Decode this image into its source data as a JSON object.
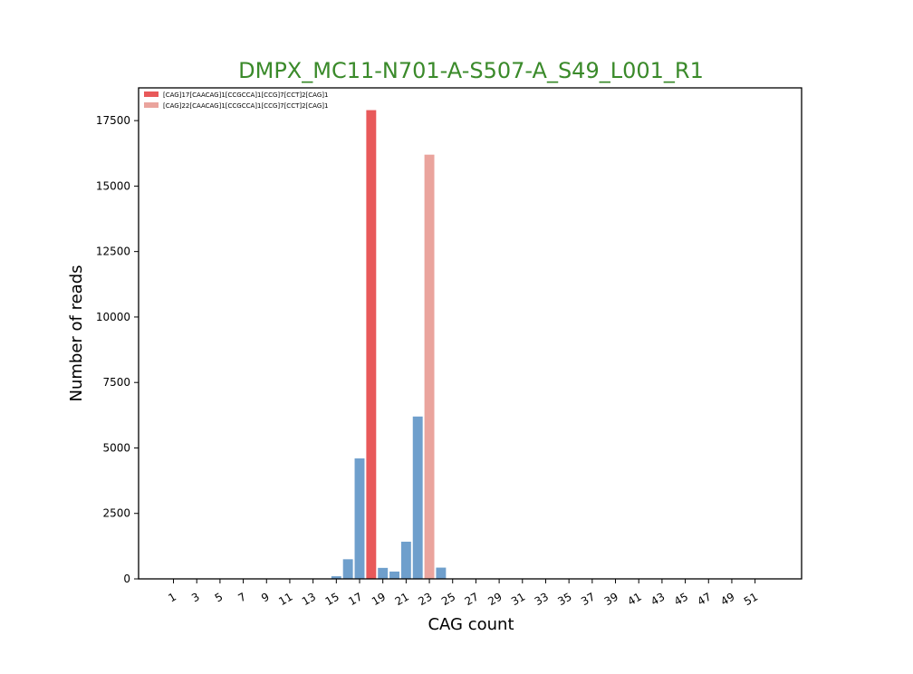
{
  "chart_data": {
    "type": "bar",
    "title": "DMPX_MC11-N701-A-S507-A_S49_L001_R1",
    "title_color": "#3a8a2a",
    "xlabel": "CAG count",
    "ylabel": "Number of reads",
    "xlim": [
      -2,
      55
    ],
    "ylim": [
      0,
      18750
    ],
    "y_ticks": [
      0,
      2500,
      5000,
      7500,
      10000,
      12500,
      15000,
      17500
    ],
    "x_ticks": [
      1,
      3,
      5,
      7,
      9,
      11,
      13,
      15,
      17,
      19,
      21,
      23,
      25,
      27,
      29,
      31,
      33,
      35,
      37,
      39,
      41,
      43,
      45,
      47,
      49,
      51
    ],
    "x_tick_labels": [
      "1",
      "3",
      "5",
      "7",
      "9",
      "11",
      "13",
      "15",
      "17",
      "19",
      "21",
      "23",
      "25",
      "27",
      "29",
      "31",
      "33",
      "35",
      "37",
      "39",
      "41",
      "43",
      "45",
      "47",
      "49",
      "51"
    ],
    "grid": false,
    "legend_position": "top-left",
    "series": [
      {
        "name": "",
        "color": "#6f9fcc",
        "points": [
          {
            "x": 15,
            "y": 100
          },
          {
            "x": 16,
            "y": 750
          },
          {
            "x": 17,
            "y": 4600
          },
          {
            "x": 19,
            "y": 420
          },
          {
            "x": 20,
            "y": 280
          },
          {
            "x": 21,
            "y": 1420
          },
          {
            "x": 22,
            "y": 6200
          },
          {
            "x": 24,
            "y": 430
          }
        ]
      },
      {
        "name": "[CAG]17[CAACAG]1[CCGCCA]1[CCG]7[CCT]2[CAG]1",
        "color": "#e8595a",
        "points": [
          {
            "x": 18,
            "y": 17900
          }
        ]
      },
      {
        "name": "[CAG]22[CAACAG]1[CCGCCA]1[CCG]7[CCT]2[CAG]1",
        "color": "#eaa49d",
        "points": [
          {
            "x": 23,
            "y": 16200
          }
        ]
      }
    ]
  }
}
